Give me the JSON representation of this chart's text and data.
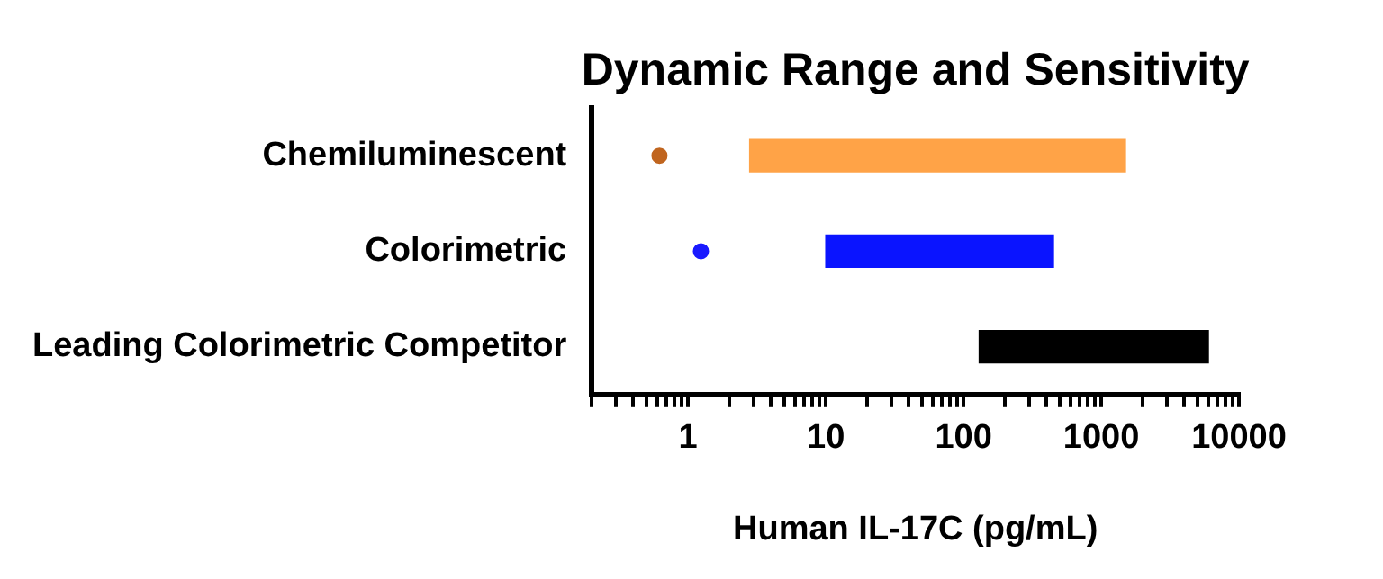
{
  "chart_data": {
    "type": "bar",
    "orientation": "horizontal",
    "title": "Dynamic Range and Sensitivity",
    "xlabel": "Human IL-17C (pg/mL)",
    "categories": [
      "Chemiluminescent",
      "Colorimetric",
      "Leading Colorimetric Competitor"
    ],
    "series": [
      {
        "colors": [
          "#ffa347",
          "#0a14ff",
          "#000000"
        ],
        "base": [
          2.8,
          10,
          130
        ],
        "values": [
          1497,
          440,
          5870
        ]
      },
      {
        "type": "scatter",
        "x": [
          "Chemiluminescent",
          "Colorimetric"
        ],
        "colors": [
          "#c0651f",
          "#1a1aff"
        ],
        "values": [
          0.62,
          1.24
        ]
      }
    ],
    "log": "x",
    "xlim": [
      0.2,
      10000
    ],
    "xticks": [
      {
        "value": 0.2,
        "label": null
      },
      {
        "value": 0.3,
        "label": null
      },
      {
        "value": 0.4,
        "label": null
      },
      {
        "value": 0.5,
        "label": null
      },
      {
        "value": 0.6,
        "label": null
      },
      {
        "value": 0.7,
        "label": null
      },
      {
        "value": 0.8,
        "label": null
      },
      {
        "value": 0.9,
        "label": null
      },
      1,
      {
        "value": 2,
        "label": null
      },
      {
        "value": 3,
        "label": null
      },
      {
        "value": 4,
        "label": null
      },
      {
        "value": 5,
        "label": null
      },
      {
        "value": 6,
        "label": null
      },
      {
        "value": 7,
        "label": null
      },
      {
        "value": 8,
        "label": null
      },
      {
        "value": 9,
        "label": null
      },
      10,
      {
        "value": 20,
        "label": null
      },
      {
        "value": 30,
        "label": null
      },
      {
        "value": 40,
        "label": null
      },
      {
        "value": 50,
        "label": null
      },
      {
        "value": 60,
        "label": null
      },
      {
        "value": 70,
        "label": null
      },
      {
        "value": 80,
        "label": null
      },
      {
        "value": 90,
        "label": null
      },
      100,
      {
        "value": 200,
        "label": null
      },
      {
        "value": 300,
        "label": null
      },
      {
        "value": 400,
        "label": null
      },
      {
        "value": 500,
        "label": null
      },
      {
        "value": 600,
        "label": null
      },
      {
        "value": 700,
        "label": null
      },
      {
        "value": 800,
        "label": null
      },
      {
        "value": 900,
        "label": null
      },
      1000,
      {
        "value": 2000,
        "label": null
      },
      {
        "value": 3000,
        "label": null
      },
      {
        "value": 4000,
        "label": null
      },
      {
        "value": 5000,
        "label": null
      },
      {
        "value": 6000,
        "label": null
      },
      {
        "value": 7000,
        "label": null
      },
      {
        "value": 8000,
        "label": null
      },
      {
        "value": 9000,
        "label": null
      },
      10000
    ],
    "grid": false,
    "legend": false
  }
}
